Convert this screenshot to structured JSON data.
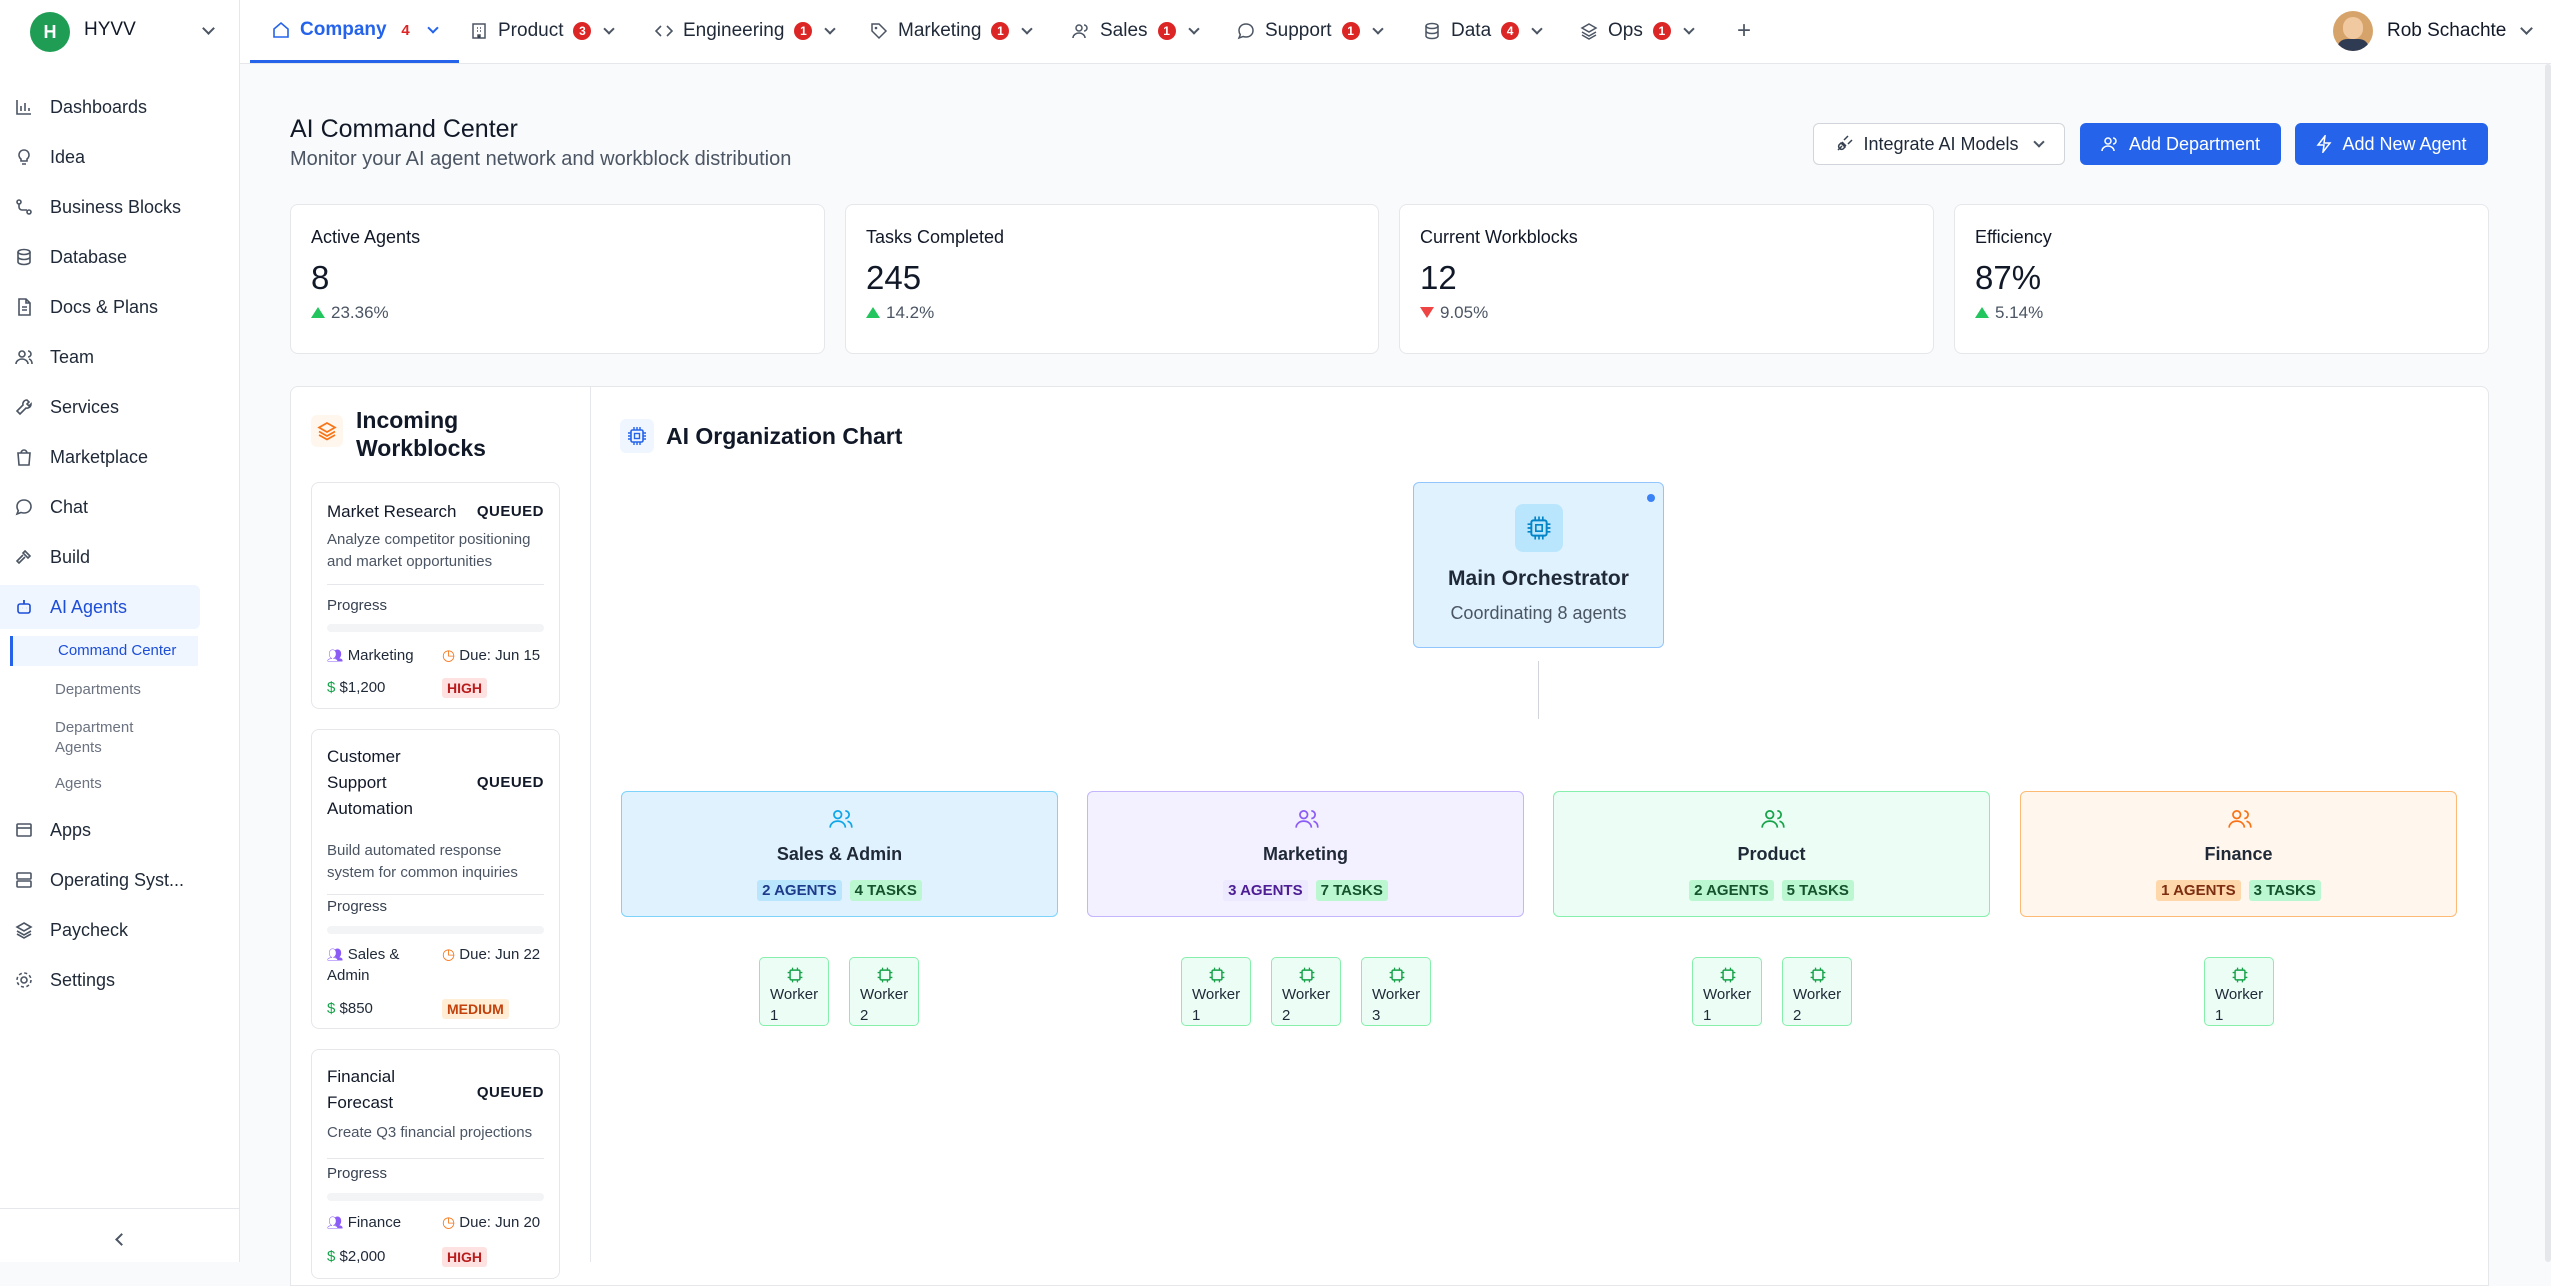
{
  "brand": {
    "initial": "H",
    "name": "HYVV"
  },
  "sidebar": {
    "items": [
      {
        "label": "Dashboards",
        "icon": "bar-chart-icon"
      },
      {
        "label": "Idea",
        "icon": "lightbulb-icon"
      },
      {
        "label": "Business Blocks",
        "icon": "workflow-icon"
      },
      {
        "label": "Database",
        "icon": "database-icon"
      },
      {
        "label": "Docs & Plans",
        "icon": "document-icon"
      },
      {
        "label": "Team",
        "icon": "users-icon"
      },
      {
        "label": "Services",
        "icon": "wrench-icon"
      },
      {
        "label": "Marketplace",
        "icon": "shopping-bag-icon"
      },
      {
        "label": "Chat",
        "icon": "chat-icon"
      },
      {
        "label": "Build",
        "icon": "hammer-icon"
      },
      {
        "label": "AI Agents",
        "icon": "bot-icon"
      }
    ],
    "subitems": [
      "Command Center",
      "Departments",
      "Department Agents",
      "Agents"
    ],
    "items_after": [
      {
        "label": "Apps",
        "icon": "apps-icon"
      },
      {
        "label": "Operating Syst...",
        "icon": "server-icon"
      },
      {
        "label": "Paycheck",
        "icon": "layers-icon"
      },
      {
        "label": "Settings",
        "icon": "gear-icon"
      }
    ]
  },
  "tabs": [
    {
      "label": "Company",
      "badge": "4",
      "icon": "home-icon"
    },
    {
      "label": "Product",
      "badge": "3",
      "icon": "building-icon"
    },
    {
      "label": "Engineering",
      "badge": "1",
      "icon": "code-icon"
    },
    {
      "label": "Marketing",
      "badge": "1",
      "icon": "tag-icon"
    },
    {
      "label": "Sales",
      "badge": "1",
      "icon": "users-icon"
    },
    {
      "label": "Support",
      "badge": "1",
      "icon": "chat-icon"
    },
    {
      "label": "Data",
      "badge": "4",
      "icon": "database-icon"
    },
    {
      "label": "Ops",
      "badge": "1",
      "icon": "layers-icon"
    }
  ],
  "user": {
    "name": "Rob Schachte"
  },
  "header": {
    "title": "AI Command Center",
    "subtitle": "Monitor your AI agent network and workblock distribution",
    "integrate_label": "Integrate AI Models",
    "add_department_label": "Add Department",
    "add_agent_label": "Add New Agent"
  },
  "stats": [
    {
      "label": "Active Agents",
      "value": "8",
      "change": "23.36%",
      "direction": "up"
    },
    {
      "label": "Tasks Completed",
      "value": "245",
      "change": "14.2%",
      "direction": "up"
    },
    {
      "label": "Current Workblocks",
      "value": "12",
      "change": "9.05%",
      "direction": "down"
    },
    {
      "label": "Efficiency",
      "value": "87%",
      "change": "5.14%",
      "direction": "up"
    }
  ],
  "workblocks": {
    "title": "Incoming Workblocks",
    "progress_label": "Progress",
    "items": [
      {
        "title": "Market Research",
        "status": "QUEUED",
        "desc": "Analyze competitor positioning and market opportunities",
        "dept": "Marketing",
        "due": "Due: Jun 15",
        "budget": "$1,200",
        "priority": "HIGH",
        "progress": 0
      },
      {
        "title": "Customer Support Automation",
        "status": "QUEUED",
        "desc": "Build automated response system for common inquiries",
        "dept": "Sales & Admin",
        "due": "Due: Jun 22",
        "budget": "$850",
        "priority": "MEDIUM",
        "progress": 0
      },
      {
        "title": "Financial Forecast",
        "status": "QUEUED",
        "desc": "Create Q3 financial projections",
        "dept": "Finance",
        "due": "Due: Jun 20",
        "budget": "$2,000",
        "priority": "HIGH",
        "progress": 0
      }
    ]
  },
  "org": {
    "title": "AI Organization Chart",
    "orchestrator": {
      "name": "Main Orchestrator",
      "desc": "Coordinating 8 agents"
    },
    "departments": [
      {
        "name": "Sales & Admin",
        "agents": "2 AGENTS",
        "tasks": "4 TASKS",
        "workers": [
          "Worker 1",
          "Worker 2"
        ],
        "accent": "#0ea5e9"
      },
      {
        "name": "Marketing",
        "agents": "3 AGENTS",
        "tasks": "7 TASKS",
        "workers": [
          "Worker 1",
          "Worker 2",
          "Worker 3"
        ],
        "accent": "#8b5cf6"
      },
      {
        "name": "Product",
        "agents": "2 AGENTS",
        "tasks": "5 TASKS",
        "workers": [
          "Worker 1",
          "Worker 2"
        ],
        "accent": "#22c55e"
      },
      {
        "name": "Finance",
        "agents": "1 AGENTS",
        "tasks": "3 TASKS",
        "workers": [
          "Worker 1"
        ],
        "accent": "#f97316"
      }
    ]
  }
}
